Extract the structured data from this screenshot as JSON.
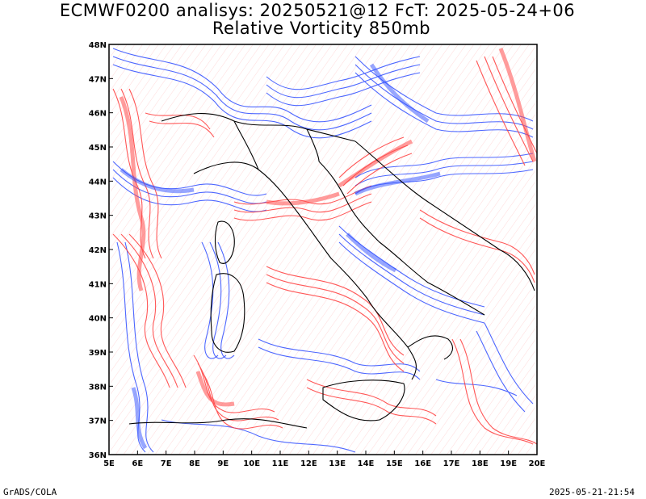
{
  "title_line1": "ECMWF0200 analisys: 20250521@12 FcT: 2025-05-24+06",
  "title_line2": "Relative Vorticity 850mb",
  "footer_left": "GrADS/COLA",
  "footer_right": "2025-05-21-21:54",
  "colors": {
    "positive": "#ff3b3b",
    "negative": "#2f4dff",
    "coast": "#000000"
  },
  "x_ticks": [
    "5E",
    "6E",
    "7E",
    "8E",
    "9E",
    "10E",
    "11E",
    "12E",
    "13E",
    "14E",
    "15E",
    "16E",
    "17E",
    "18E",
    "19E",
    "20E"
  ],
  "y_ticks": [
    "36N",
    "37N",
    "38N",
    "39N",
    "40N",
    "41N",
    "42N",
    "43N",
    "44N",
    "45N",
    "46N",
    "47N",
    "48N"
  ],
  "map": {
    "lon_range": [
      5,
      20
    ],
    "lat_range": [
      36,
      48
    ]
  }
}
